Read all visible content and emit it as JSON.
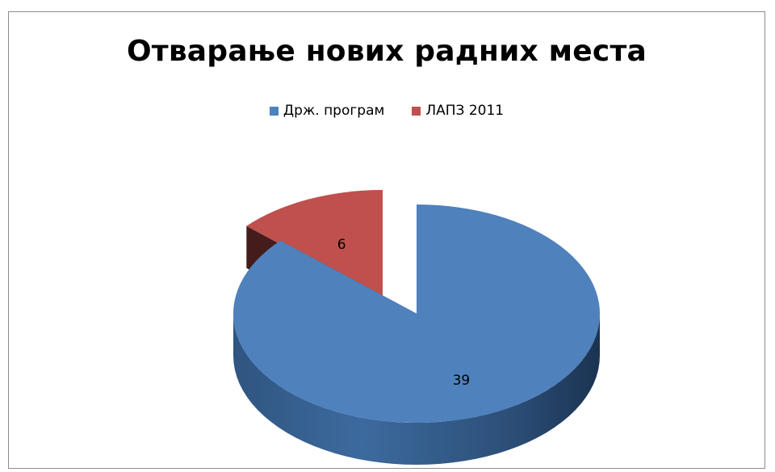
{
  "chart_data": {
    "type": "pie",
    "title": "Отварање нових радних места",
    "categories": [
      "Држ. програм",
      "ЛАПЗ 2011"
    ],
    "values": [
      39,
      6
    ],
    "colors": [
      "#4F81BD",
      "#C0504D"
    ],
    "data_labels": [
      "39",
      "6"
    ],
    "legend_position": "top",
    "style": "3d-exploded"
  }
}
